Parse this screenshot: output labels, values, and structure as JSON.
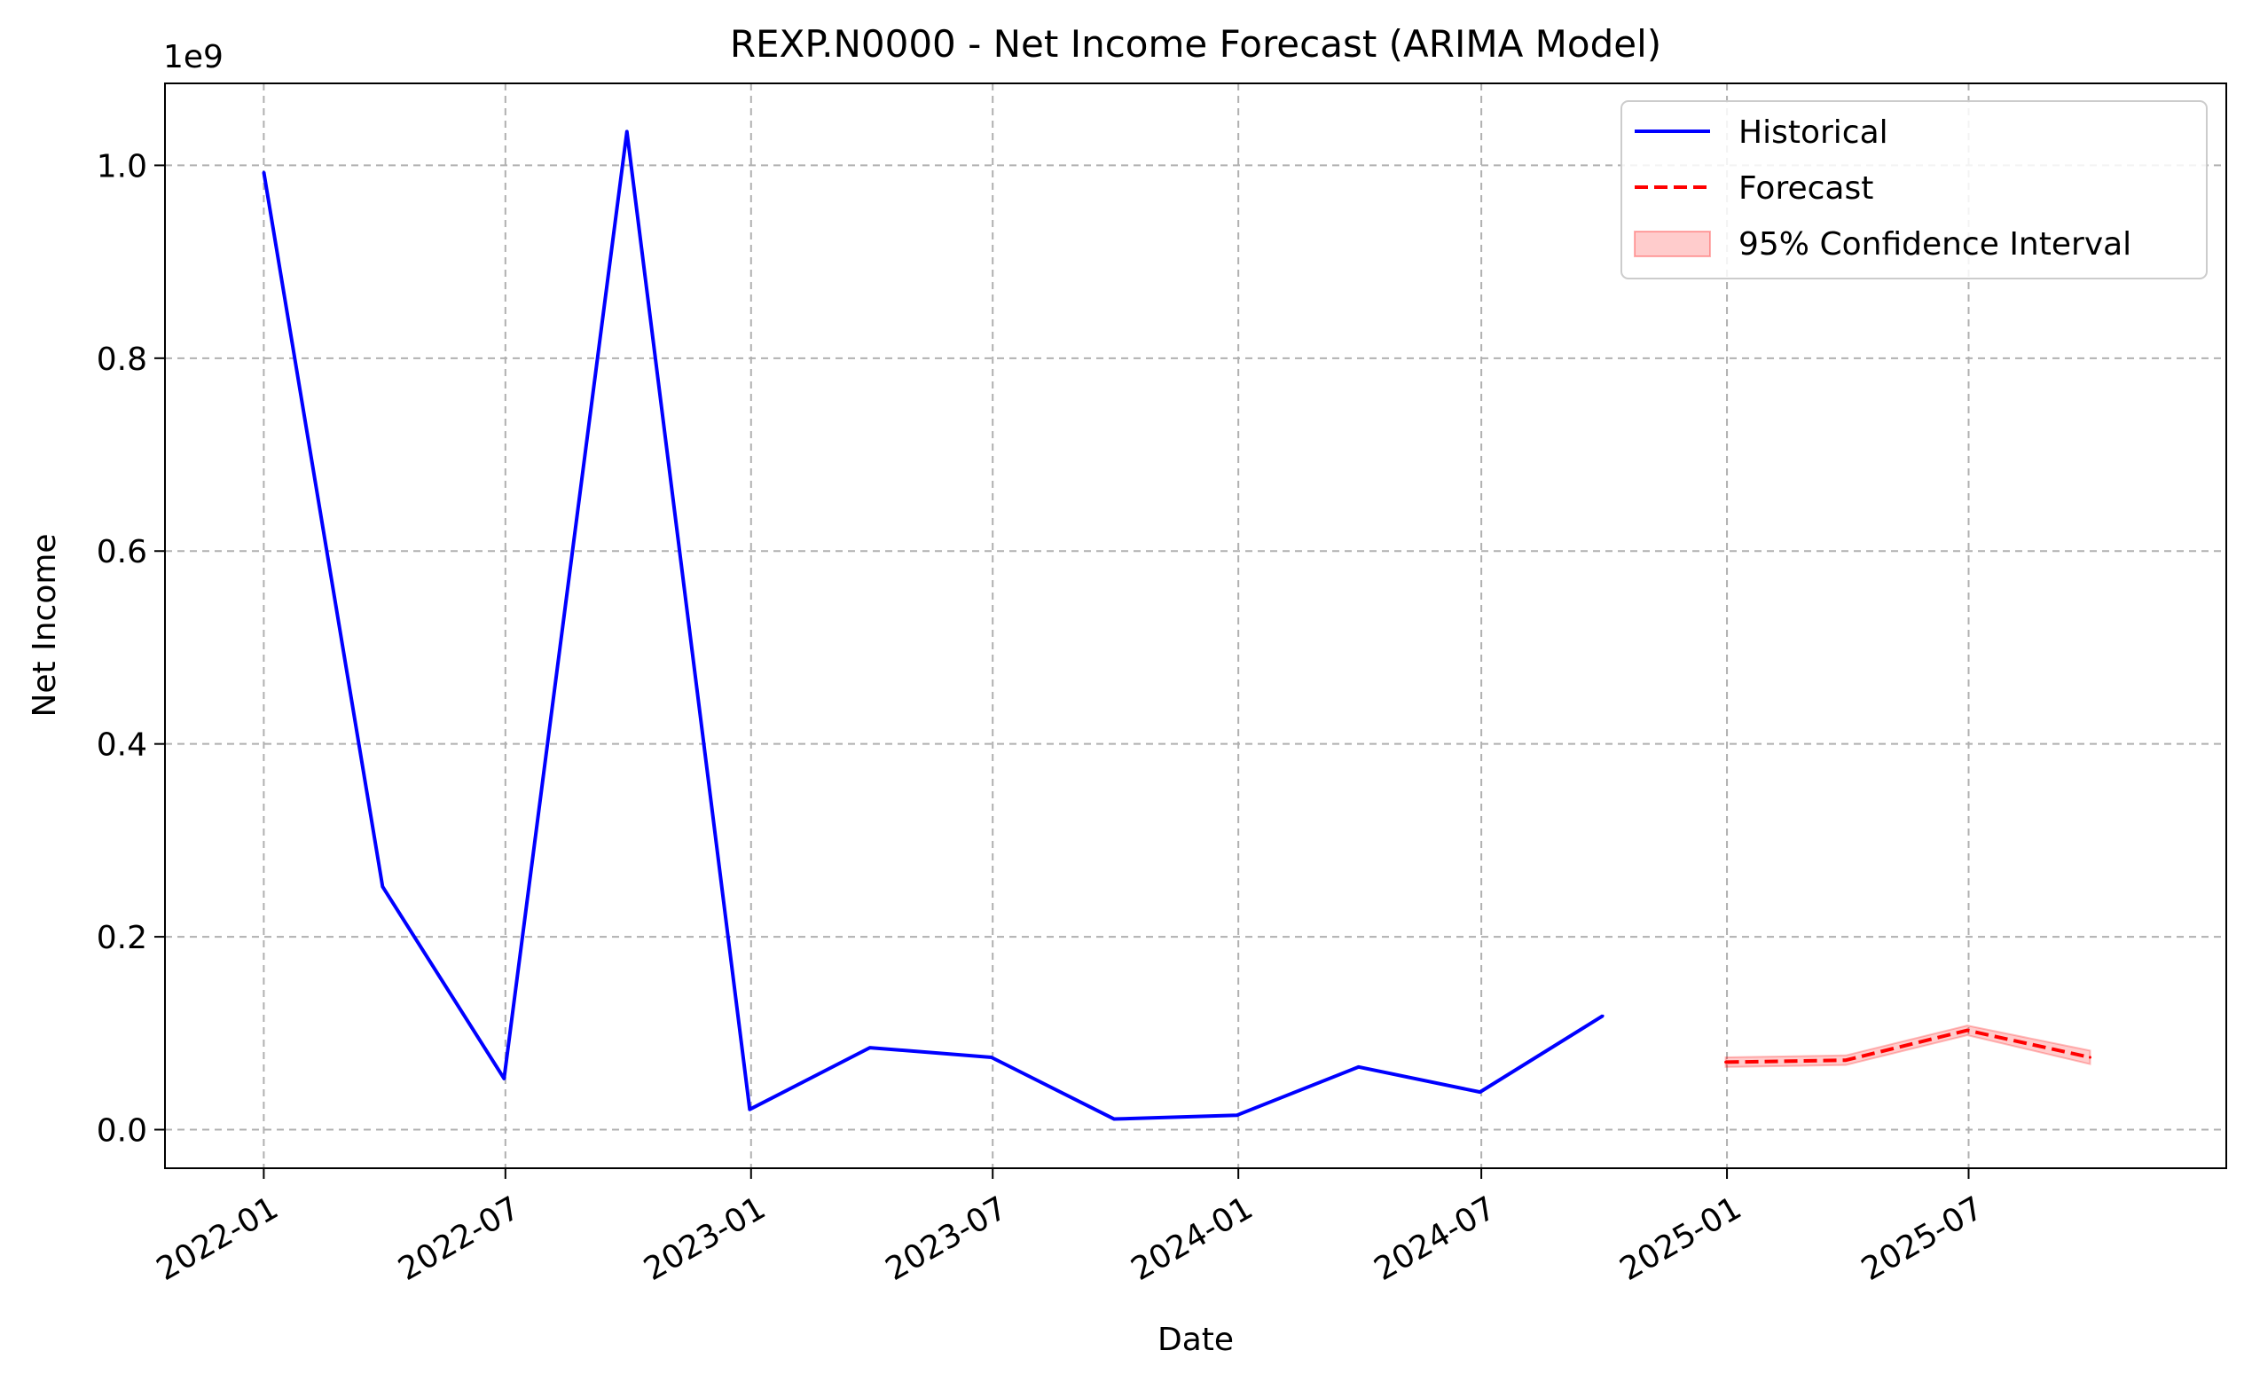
{
  "chart_data": {
    "type": "line",
    "title": "REXP.N0000 - Net Income Forecast (ARIMA Model)",
    "xlabel": "Date",
    "ylabel": "Net Income",
    "y_offset_label": "1e9",
    "y_scale": 1000000000,
    "xlim": [
      "2021-10-19",
      "2026-01-10"
    ],
    "ylim": [
      -40000000,
      1085000000
    ],
    "x_ticks": [
      "2022-01",
      "2022-07",
      "2023-01",
      "2023-07",
      "2024-01",
      "2024-07",
      "2025-01",
      "2025-07"
    ],
    "y_ticks": [
      "0.0",
      "0.2",
      "0.4",
      "0.6",
      "0.8",
      "1.0"
    ],
    "grid": true,
    "legend_position": "top-right",
    "series": [
      {
        "name": "Historical",
        "style": "solid",
        "color": "#0000ff",
        "x": [
          "2022-01-01",
          "2022-03-31",
          "2022-06-30",
          "2022-09-30",
          "2022-12-31",
          "2023-03-31",
          "2023-06-30",
          "2023-09-30",
          "2023-12-31",
          "2024-03-31",
          "2024-06-30",
          "2024-09-30"
        ],
        "values": [
          993000000,
          252000000,
          53000000,
          1035000000,
          21000000,
          85000000,
          75000000,
          11000000,
          15000000,
          65000000,
          39000000,
          118000000
        ]
      },
      {
        "name": "Forecast",
        "style": "dashed",
        "color": "#ff0000",
        "x": [
          "2024-12-31",
          "2025-03-31",
          "2025-06-30",
          "2025-09-30"
        ],
        "values": [
          70000000,
          72000000,
          103000000,
          75000000
        ]
      }
    ],
    "confidence_interval": {
      "name": "95% Confidence Interval",
      "color": "#ff0000",
      "x": [
        "2024-12-31",
        "2025-03-31",
        "2025-06-30",
        "2025-09-30"
      ],
      "lower": [
        65000000,
        67000000,
        98000000,
        68000000
      ],
      "upper": [
        75000000,
        77000000,
        108000000,
        82000000
      ]
    }
  }
}
